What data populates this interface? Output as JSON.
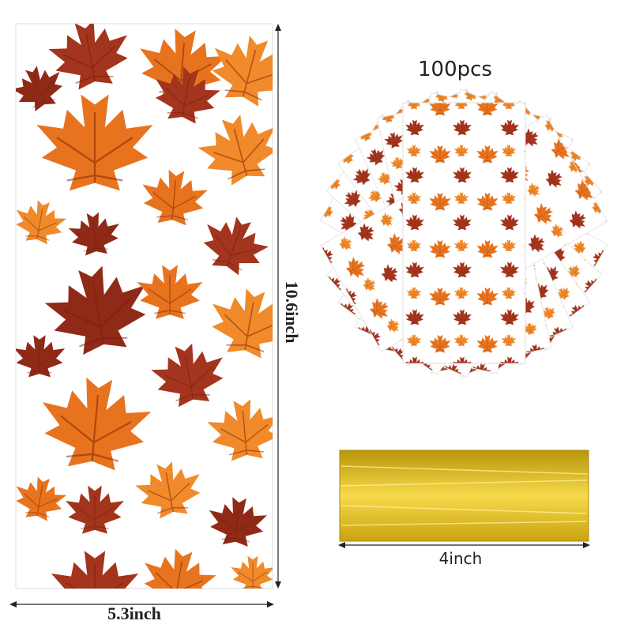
{
  "labels": {
    "count": "100pcs",
    "height": "10.6inch",
    "width": "5.3inch",
    "tie_length": "4inch"
  }
}
